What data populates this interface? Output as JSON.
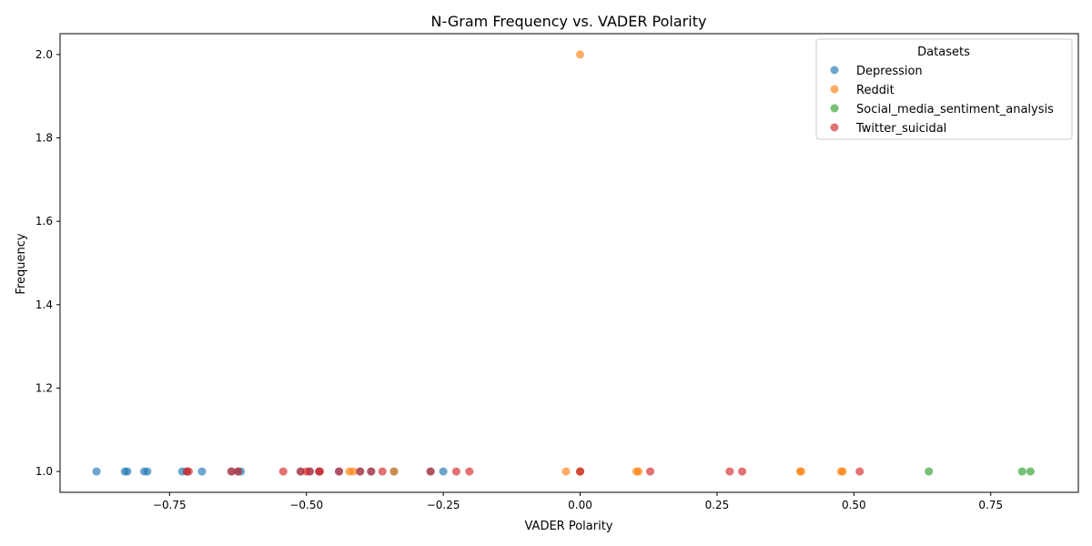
{
  "chart_data": {
    "type": "scatter",
    "title": "N-Gram Frequency vs. VADER Polarity",
    "xlabel": "VADER Polarity",
    "ylabel": "Frequency",
    "xlim": [
      -0.95,
      0.91
    ],
    "ylim": [
      0.95,
      2.05
    ],
    "xticks": [
      -0.75,
      -0.5,
      -0.25,
      0.0,
      0.25,
      0.5,
      0.75
    ],
    "xtick_labels": [
      "−0.75",
      "−0.50",
      "−0.25",
      "0.00",
      "0.25",
      "0.50",
      "0.75"
    ],
    "yticks": [
      1.0,
      1.2,
      1.4,
      1.6,
      1.8,
      2.0
    ],
    "ytick_labels": [
      "1.0",
      "1.2",
      "1.4",
      "1.6",
      "1.8",
      "2.0"
    ],
    "grid": false,
    "legend": {
      "title": "Datasets",
      "placement": "top-right"
    },
    "series": [
      {
        "name": "Depression",
        "color": "#1f77b4",
        "x": [
          -0.8834,
          -0.8316,
          -0.8271,
          -0.7964,
          -0.7906,
          -0.7269,
          -0.7184,
          -0.6908,
          -0.6369,
          -0.6249,
          -0.6199,
          -0.5106,
          -0.4939,
          -0.4767,
          -0.4404,
          -0.4019,
          -0.3818,
          -0.34,
          -0.2732,
          -0.25,
          0.0
        ],
        "y": [
          1,
          1,
          1,
          1,
          1,
          1,
          1,
          1,
          1,
          1,
          1,
          1,
          1,
          1,
          1,
          1,
          1,
          1,
          1,
          1,
          1
        ]
      },
      {
        "name": "Reddit",
        "color": "#ff7f0e",
        "x": [
          -0.4215,
          -0.4144,
          -0.34,
          -0.0258,
          0.0,
          0.0,
          0.1027,
          0.1065,
          0.4019,
          0.4036,
          0.4767,
          0.4796
        ],
        "y": [
          1,
          1,
          1,
          1,
          2,
          1,
          1,
          1,
          1,
          1,
          1,
          1
        ]
      },
      {
        "name": "Social_media_sentiment_analysis",
        "color": "#2ca02c",
        "x": [
          0.6369,
          0.8074,
          0.8225
        ],
        "y": [
          1,
          1,
          1
        ]
      },
      {
        "name": "Twitter_suicidal",
        "color": "#d62728",
        "x": [
          -0.7184,
          -0.7149,
          -0.6369,
          -0.6249,
          -0.5423,
          -0.5106,
          -0.5,
          -0.4939,
          -0.4767,
          -0.4754,
          -0.4404,
          -0.4019,
          -0.3818,
          -0.3612,
          -0.2732,
          -0.2263,
          -0.2023,
          0.0,
          0.128,
          0.2732,
          0.296,
          0.5106
        ],
        "y": [
          1,
          1,
          1,
          1,
          1,
          1,
          1,
          1,
          1,
          1,
          1,
          1,
          1,
          1,
          1,
          1,
          1,
          1,
          1,
          1,
          1,
          1
        ]
      }
    ]
  }
}
